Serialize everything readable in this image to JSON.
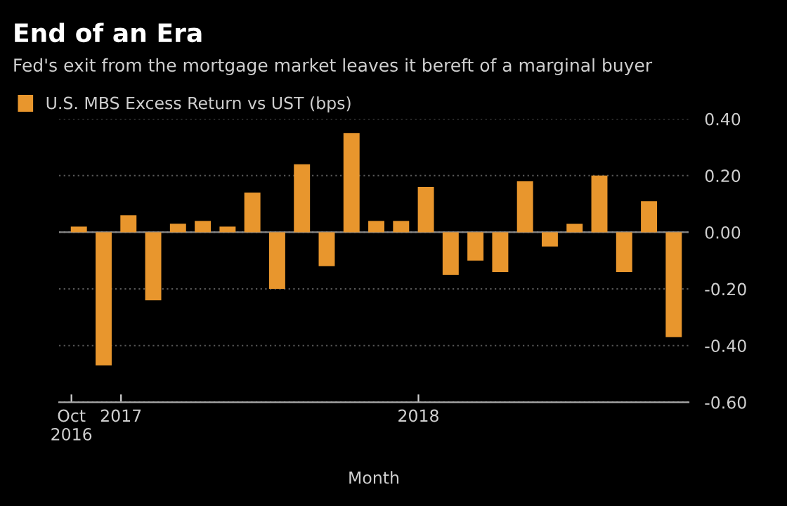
{
  "chart_data": {
    "type": "bar",
    "title": "End of an Era",
    "subtitle": "Fed's exit from the mortgage market leaves it bereft of a marginal buyer",
    "xlabel": "Month",
    "categories": [
      "Oct\n2016",
      null,
      "2017",
      null,
      null,
      null,
      null,
      null,
      null,
      null,
      null,
      null,
      null,
      null,
      "2018",
      null,
      null,
      null,
      null,
      null,
      null,
      null,
      null,
      null,
      null
    ],
    "series": [
      {
        "name": "U.S. MBS Excess Return vs UST (bps)",
        "color": "#e8962d",
        "values": [
          0.02,
          -0.47,
          0.06,
          -0.24,
          0.03,
          0.04,
          0.02,
          0.14,
          -0.2,
          0.24,
          -0.12,
          0.35,
          0.04,
          0.04,
          0.16,
          -0.15,
          -0.1,
          -0.14,
          0.18,
          -0.05,
          0.03,
          0.2,
          -0.14,
          0.11,
          -0.37
        ]
      }
    ],
    "ylim": [
      -0.6,
      0.4
    ],
    "yticks": [
      {
        "value": -0.6,
        "label": "-0.60"
      },
      {
        "value": -0.4,
        "label": "-0.40"
      },
      {
        "value": -0.2,
        "label": "-0.20"
      },
      {
        "value": 0,
        "label": "0.00"
      },
      {
        "value": 0.2,
        "label": "0.20"
      },
      {
        "value": 0.4,
        "label": "0.40"
      }
    ],
    "grid": "y",
    "legend": "top left"
  }
}
